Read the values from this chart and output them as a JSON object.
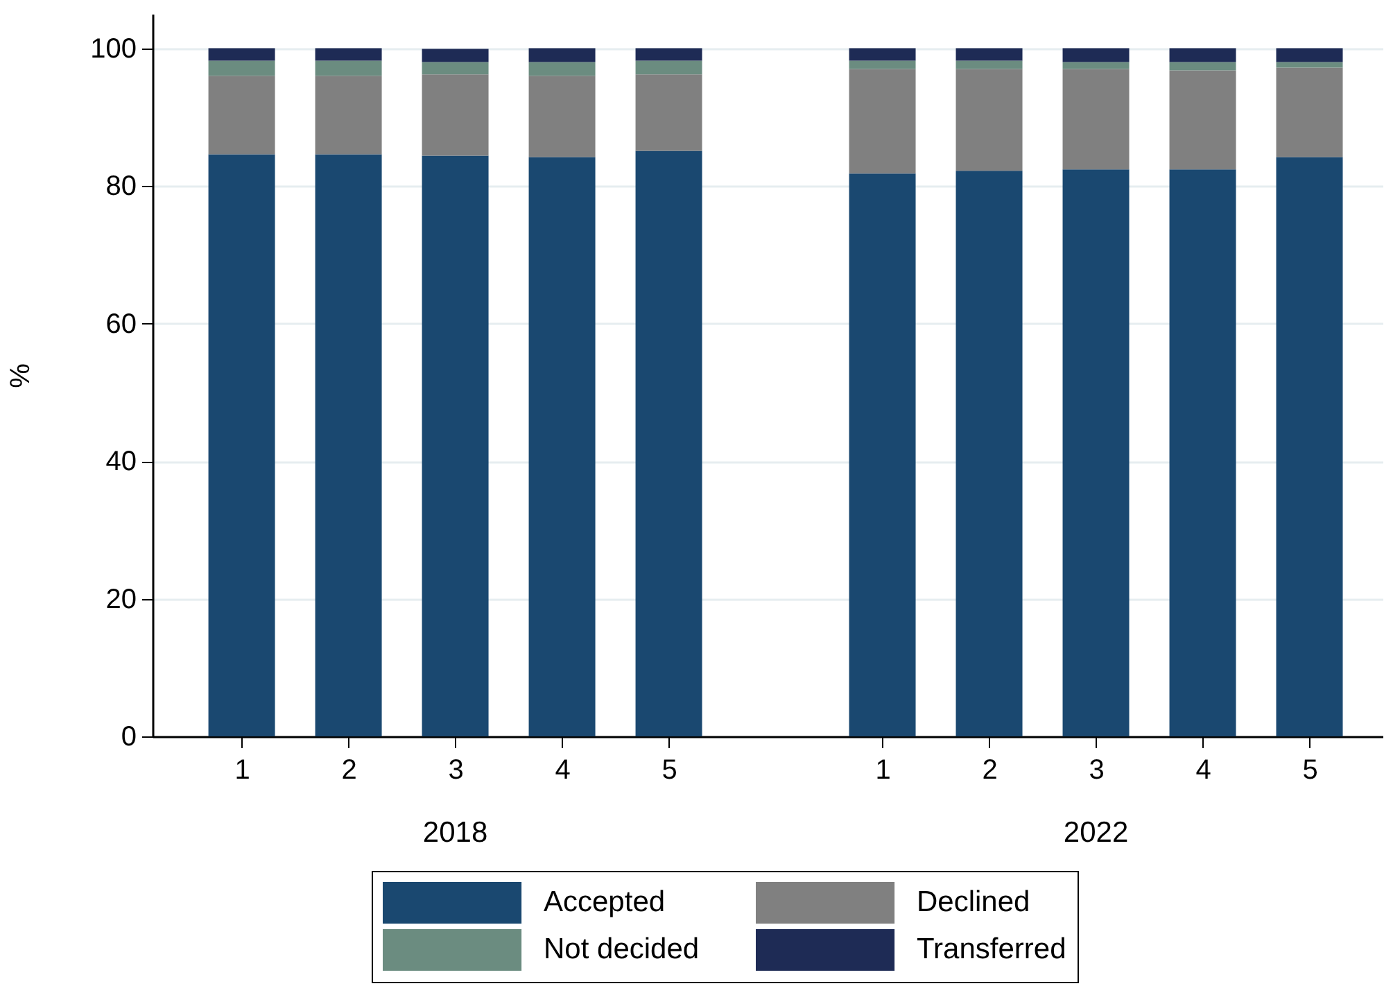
{
  "chart_data": {
    "type": "bar",
    "stacked": true,
    "ylabel": "%",
    "categories": [
      "1",
      "2",
      "3",
      "4",
      "5",
      null,
      "1",
      "2",
      "3",
      "4",
      "5"
    ],
    "series": [
      {
        "name": "Accepted",
        "color": "#1a4870",
        "values": [
          84.6,
          84.6,
          84.4,
          84.2,
          85.1,
          null,
          81.8,
          82.2,
          82.4,
          82.4,
          84.2
        ]
      },
      {
        "name": "Declined",
        "color": "#808080",
        "values": [
          11.4,
          11.4,
          11.8,
          11.8,
          11.1,
          null,
          15.2,
          14.8,
          14.6,
          14.4,
          13.0
        ]
      },
      {
        "name": "Not decided",
        "color": "#6b8c80",
        "values": [
          2.2,
          2.2,
          1.8,
          2.0,
          2.0,
          null,
          1.2,
          1.2,
          1.0,
          1.2,
          0.8
        ]
      },
      {
        "name": "Transferred",
        "color": "#1e2b55",
        "values": [
          1.8,
          1.8,
          1.9,
          2.0,
          1.8,
          null,
          1.8,
          1.8,
          2.0,
          2.0,
          2.0
        ]
      }
    ],
    "annotations": [
      "2018",
      "2022"
    ],
    "ylim": [
      0,
      105
    ],
    "yticks": [
      0,
      20,
      40,
      60,
      80,
      100
    ],
    "grid": "y",
    "legend": "bottom"
  }
}
